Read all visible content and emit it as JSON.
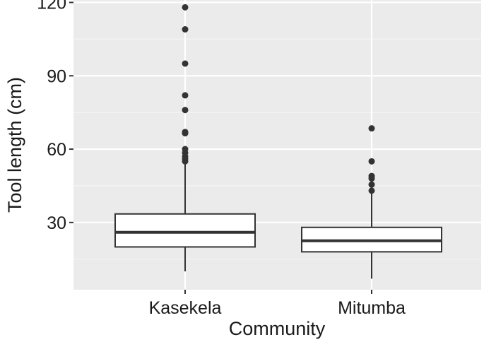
{
  "chart_data": {
    "type": "boxplot",
    "xlabel": "Community",
    "ylabel": "Tool length (cm)",
    "ylim": [
      2.5,
      121
    ],
    "y_ticks": [
      30,
      60,
      90,
      120
    ],
    "y_minor_ticks": [
      15,
      45,
      75,
      105
    ],
    "grid": true,
    "categories": [
      "Kasekela",
      "Mitumba"
    ],
    "boxes": [
      {
        "category": "Kasekela",
        "whisker_low": 10,
        "q1": 20,
        "median": 26,
        "q3": 33.5,
        "whisker_high": 54,
        "outliers": [
          118,
          109,
          95,
          82,
          76,
          67,
          66.5,
          60,
          58.5,
          57,
          56,
          55
        ]
      },
      {
        "category": "Mitumba",
        "whisker_low": 7,
        "q1": 18,
        "median": 22.5,
        "q3": 28,
        "whisker_high": 42,
        "outliers": [
          68.5,
          55,
          49,
          48,
          45.5,
          43
        ]
      }
    ]
  },
  "colors": {
    "panel_background": "#ebebeb",
    "grid_major": "#ffffff",
    "grid_minor": "#f5f5f5",
    "box_fill": "#ffffff",
    "box_stroke": "#333333",
    "outlier": "#333333",
    "tick": "#333333"
  }
}
